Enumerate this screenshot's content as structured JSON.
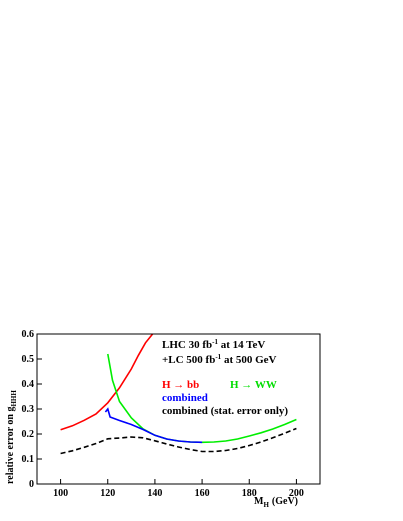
{
  "chart_data": {
    "type": "line",
    "title": "",
    "xlabel": "M",
    "xlabel_sub": "H",
    "xlabel_unit": "(GeV)",
    "ylabel": "relative error on g",
    "ylabel_sub": "HHH",
    "xlim": [
      90,
      210
    ],
    "ylim": [
      0,
      0.6
    ],
    "x_ticks": [
      100,
      120,
      140,
      160,
      180,
      200
    ],
    "x_tick_labels": [
      "100",
      "120",
      "140",
      "160",
      "180",
      "200"
    ],
    "y_ticks": [
      0,
      0.1,
      0.2,
      0.3,
      0.4,
      0.5,
      0.6
    ],
    "y_tick_labels": [
      "0",
      "0.1",
      "0.2",
      "0.3",
      "0.4",
      "0.5",
      "0.6"
    ],
    "grid": false,
    "annotations": {
      "line1_a": "LHC 30 fb",
      "line1_sup": "-1",
      "line1_b": " at 14 TeV",
      "line2_a": "+LC 500 fb",
      "line2_sup": "-1",
      "line2_b": " at 500 GeV"
    },
    "legend": {
      "bb": "H → bb",
      "ww": "H → WW",
      "combined": "combined",
      "stat": "combined (stat. error only)"
    },
    "series": [
      {
        "name": "H → bb",
        "color": "#ff0000",
        "dash": "",
        "x": [
          100,
          105,
          110,
          115,
          120,
          125,
          130,
          133,
          136,
          139
        ],
        "y": [
          0.217,
          0.233,
          0.255,
          0.28,
          0.325,
          0.385,
          0.46,
          0.515,
          0.565,
          0.6
        ]
      },
      {
        "name": "H → WW",
        "color": "#00ee00",
        "dash": "",
        "x": [
          120,
          122,
          125,
          130,
          135,
          140,
          145,
          150,
          155,
          160,
          165,
          170,
          175,
          180,
          185,
          190,
          195,
          200
        ],
        "y": [
          0.52,
          0.415,
          0.33,
          0.265,
          0.22,
          0.195,
          0.18,
          0.172,
          0.168,
          0.167,
          0.168,
          0.172,
          0.18,
          0.192,
          0.205,
          0.22,
          0.238,
          0.258
        ]
      },
      {
        "name": "combined",
        "color": "#0000ff",
        "dash": "",
        "x": [
          119,
          120,
          121,
          125,
          130,
          135,
          140,
          145,
          150,
          155,
          160
        ],
        "y": [
          0.288,
          0.3,
          0.268,
          0.254,
          0.238,
          0.218,
          0.195,
          0.18,
          0.172,
          0.168,
          0.167
        ]
      },
      {
        "name": "combined (stat. error only)",
        "color": "#000000",
        "dash": "5,3",
        "x": [
          100,
          105,
          110,
          115,
          120,
          125,
          130,
          135,
          140,
          145,
          150,
          155,
          160,
          165,
          170,
          175,
          180,
          185,
          190,
          195,
          200
        ],
        "y": [
          0.122,
          0.133,
          0.147,
          0.162,
          0.181,
          0.184,
          0.188,
          0.185,
          0.173,
          0.16,
          0.148,
          0.138,
          0.13,
          0.13,
          0.134,
          0.142,
          0.154,
          0.168,
          0.185,
          0.203,
          0.222
        ]
      }
    ]
  }
}
